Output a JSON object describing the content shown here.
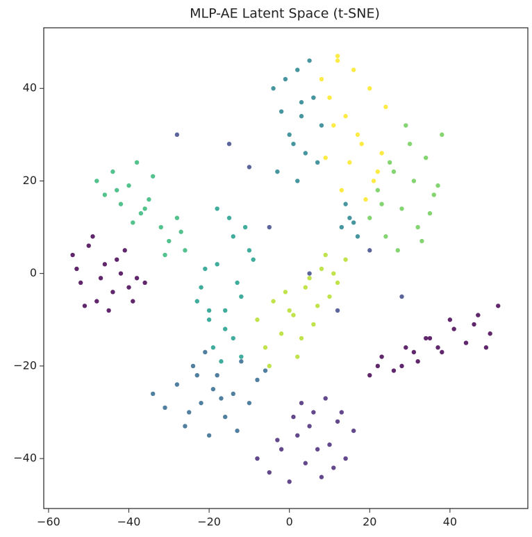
{
  "chart_data": {
    "type": "scatter",
    "title": "MLP-AE Latent Space (t-SNE)",
    "xlim": [
      -61.2,
      59.4
    ],
    "ylim": [
      -50.8,
      53.1
    ],
    "xticks": [
      {
        "value": -60,
        "label": "−60"
      },
      {
        "value": -40,
        "label": "−40"
      },
      {
        "value": -20,
        "label": "−20"
      },
      0,
      20,
      40
    ],
    "yticks": [
      {
        "value": -40,
        "label": "−40"
      },
      {
        "value": -20,
        "label": "−20"
      },
      0,
      20,
      40
    ],
    "grid": false,
    "series": [
      {
        "color": "#440154",
        "x": [
          -54,
          -52,
          -50,
          -48,
          -46,
          -44,
          -42,
          -40,
          -38,
          -36,
          -53,
          -49,
          -45,
          -41,
          -47,
          -51,
          -43,
          -39,
          20,
          23,
          26,
          29,
          32,
          35,
          38,
          41,
          44,
          47,
          50,
          52,
          22,
          28,
          34,
          40,
          46,
          49,
          37,
          31
        ],
        "y": [
          4,
          -2,
          6,
          -6,
          2,
          -4,
          0,
          -3,
          -1,
          -2,
          1,
          8,
          -8,
          5,
          -1,
          -7,
          3,
          -6,
          -22,
          -18,
          -21,
          -16,
          -19,
          -14,
          -17,
          -12,
          -15,
          -9,
          -13,
          -7,
          -20,
          -20,
          -14,
          -10,
          -11,
          -16,
          -16,
          -17
        ]
      },
      {
        "color": "#482878",
        "x": [
          -8,
          -5,
          -2,
          0,
          2,
          4,
          6,
          8,
          10,
          12,
          14,
          16,
          3,
          7,
          11,
          -3,
          1,
          9,
          13,
          5
        ],
        "y": [
          -40,
          -43,
          -38,
          -45,
          -35,
          -41,
          -30,
          -44,
          -37,
          -32,
          -40,
          -34,
          -28,
          -38,
          -42,
          -36,
          -31,
          -27,
          -30,
          -33
        ]
      },
      {
        "color": "#3e4989",
        "x": [
          -28,
          -15,
          -10,
          5,
          20,
          28,
          -5,
          12
        ],
        "y": [
          30,
          28,
          23,
          0,
          5,
          -5,
          10,
          -8
        ]
      },
      {
        "color": "#31688e",
        "x": [
          -34,
          -31,
          -28,
          -26,
          -24,
          -22,
          -20,
          -18,
          -16,
          -14,
          -12,
          -10,
          -8,
          -6,
          -25,
          -21,
          -17,
          -13,
          -19,
          -23
        ],
        "y": [
          -26,
          -29,
          -24,
          -33,
          -20,
          -28,
          -35,
          -22,
          -31,
          -26,
          -19,
          -28,
          -23,
          -21,
          -30,
          -17,
          -27,
          -34,
          -25,
          -22
        ]
      },
      {
        "color": "#26828e",
        "x": [
          -4,
          -2,
          0,
          2,
          4,
          6,
          8,
          -3,
          1,
          5,
          3,
          7,
          -1,
          2,
          13,
          15,
          17,
          14,
          16,
          3
        ],
        "y": [
          40,
          35,
          30,
          44,
          26,
          38,
          32,
          22,
          28,
          46,
          34,
          24,
          42,
          20,
          10,
          12,
          8,
          15,
          11,
          37
        ]
      },
      {
        "color": "#1f9e89",
        "x": [
          -22,
          -20,
          -18,
          -16,
          -14,
          -12,
          -10,
          -19,
          -15,
          -13,
          -17,
          -21,
          -11,
          -16,
          -18,
          -14,
          -9,
          -20,
          -12,
          -23
        ],
        "y": [
          -3,
          -8,
          2,
          -12,
          8,
          -5,
          5,
          -16,
          12,
          -2,
          -19,
          1,
          10,
          -8,
          14,
          -14,
          3,
          -10,
          -18,
          -6
        ]
      },
      {
        "color": "#35b779",
        "x": [
          -48,
          -46,
          -44,
          -42,
          -40,
          -38,
          -36,
          -34,
          -32,
          -30,
          -28,
          -26,
          -43,
          -39,
          -35,
          -31,
          -27,
          -37
        ],
        "y": [
          20,
          17,
          22,
          15,
          19,
          24,
          14,
          21,
          10,
          7,
          12,
          5,
          18,
          11,
          16,
          4,
          9,
          13
        ]
      },
      {
        "color": "#6ece58",
        "x": [
          20,
          22,
          24,
          26,
          28,
          30,
          32,
          34,
          36,
          38,
          27,
          31,
          35,
          23,
          29,
          33,
          25,
          37
        ],
        "y": [
          12,
          18,
          8,
          22,
          14,
          28,
          10,
          25,
          17,
          30,
          5,
          20,
          13,
          15,
          32,
          7,
          24,
          19
        ]
      },
      {
        "color": "#b5de2b",
        "x": [
          -8,
          -6,
          -4,
          -2,
          0,
          2,
          4,
          6,
          8,
          10,
          12,
          14,
          -5,
          -1,
          3,
          7,
          11,
          9,
          1,
          5
        ],
        "y": [
          -10,
          -16,
          -6,
          -13,
          -8,
          -18,
          -3,
          -11,
          1,
          -5,
          -2,
          3,
          -20,
          -4,
          -14,
          -7,
          0,
          4,
          -9,
          -1
        ]
      },
      {
        "color": "#fde725",
        "x": [
          8,
          10,
          12,
          14,
          16,
          18,
          20,
          22,
          24,
          9,
          13,
          17,
          21,
          11,
          15,
          19,
          23,
          12
        ],
        "y": [
          42,
          38,
          47,
          34,
          44,
          28,
          40,
          22,
          36,
          25,
          18,
          30,
          20,
          32,
          24,
          16,
          26,
          46
        ]
      }
    ]
  }
}
